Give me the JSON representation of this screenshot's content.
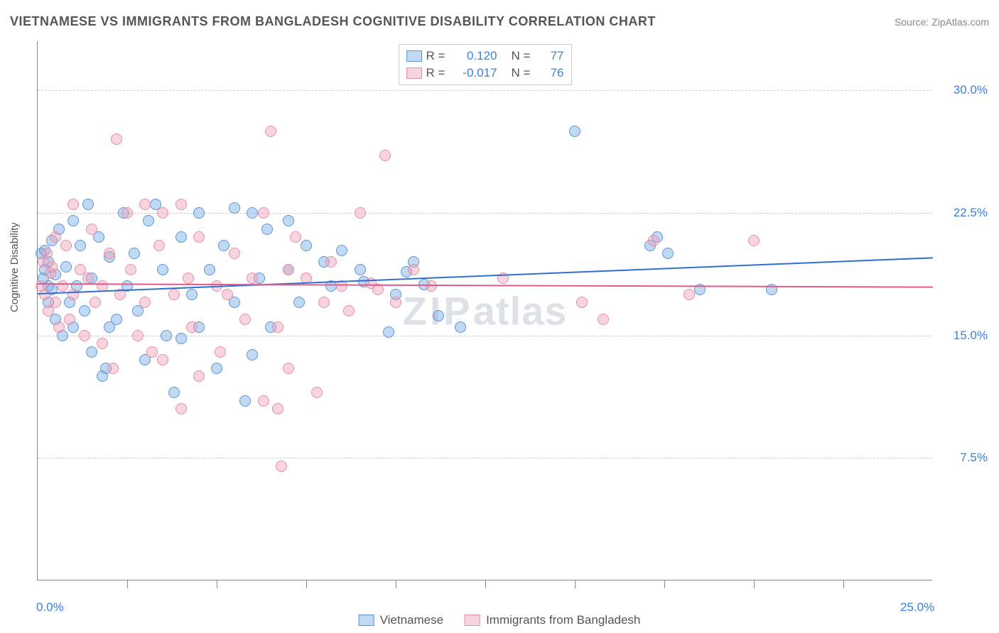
{
  "title": "VIETNAMESE VS IMMIGRANTS FROM BANGLADESH COGNITIVE DISABILITY CORRELATION CHART",
  "source_label": "Source: ",
  "source_name": "ZipAtlas.com",
  "ylabel": "Cognitive Disability",
  "watermark": "ZIPatlas",
  "chart": {
    "type": "scatter",
    "xlim": [
      0,
      25
    ],
    "ylim": [
      0,
      33
    ],
    "x_ticks": [
      0,
      25
    ],
    "x_tick_labels": [
      "0.0%",
      "25.0%"
    ],
    "x_minor_ticks": [
      2.5,
      5,
      7.5,
      10,
      12.5,
      15,
      17.5,
      20,
      22.5
    ],
    "y_ticks": [
      7.5,
      15.0,
      22.5,
      30.0
    ],
    "y_tick_labels": [
      "7.5%",
      "15.0%",
      "22.5%",
      "30.0%"
    ],
    "grid_color": "#cccccc",
    "axis_color": "#888888",
    "background_color": "#ffffff",
    "x_label_color": "#3b82d6",
    "y_label_color": "#3b82d6",
    "marker_radius": 8,
    "series": [
      {
        "name": "Vietnamese",
        "fill": "rgba(120,170,230,0.45)",
        "stroke": "#5a96d6",
        "trend_color": "#2f6fd0",
        "trend": {
          "y_at_xmin": 17.6,
          "y_at_xmax": 19.8
        },
        "R": "0.120",
        "N": "77",
        "points": [
          [
            0.1,
            20.0
          ],
          [
            0.15,
            18.5
          ],
          [
            0.2,
            19.0
          ],
          [
            0.2,
            20.2
          ],
          [
            0.3,
            17.0
          ],
          [
            0.3,
            18.0
          ],
          [
            0.3,
            19.5
          ],
          [
            0.4,
            17.8
          ],
          [
            0.4,
            20.8
          ],
          [
            0.5,
            16.0
          ],
          [
            0.5,
            18.7
          ],
          [
            0.6,
            21.5
          ],
          [
            0.7,
            15.0
          ],
          [
            0.8,
            19.2
          ],
          [
            0.9,
            17.0
          ],
          [
            1.0,
            22.0
          ],
          [
            1.0,
            15.5
          ],
          [
            1.1,
            18.0
          ],
          [
            1.2,
            20.5
          ],
          [
            1.3,
            16.5
          ],
          [
            1.4,
            23.0
          ],
          [
            1.5,
            14.0
          ],
          [
            1.5,
            18.5
          ],
          [
            1.7,
            21.0
          ],
          [
            1.8,
            12.5
          ],
          [
            1.9,
            13.0
          ],
          [
            2.0,
            15.5
          ],
          [
            2.0,
            19.8
          ],
          [
            2.2,
            16.0
          ],
          [
            2.4,
            22.5
          ],
          [
            2.5,
            18.0
          ],
          [
            2.7,
            20.0
          ],
          [
            2.8,
            16.5
          ],
          [
            3.0,
            13.5
          ],
          [
            3.1,
            22.0
          ],
          [
            3.3,
            23.0
          ],
          [
            3.5,
            19.0
          ],
          [
            3.6,
            15.0
          ],
          [
            3.8,
            11.5
          ],
          [
            4.0,
            14.8
          ],
          [
            4.0,
            21.0
          ],
          [
            4.3,
            17.5
          ],
          [
            4.5,
            22.5
          ],
          [
            4.5,
            15.5
          ],
          [
            4.8,
            19.0
          ],
          [
            5.0,
            13.0
          ],
          [
            5.2,
            20.5
          ],
          [
            5.5,
            17.0
          ],
          [
            5.5,
            22.8
          ],
          [
            5.8,
            11.0
          ],
          [
            6.0,
            13.8
          ],
          [
            6.0,
            22.5
          ],
          [
            6.2,
            18.5
          ],
          [
            6.4,
            21.5
          ],
          [
            6.5,
            15.5
          ],
          [
            7.0,
            19.0
          ],
          [
            7.0,
            22.0
          ],
          [
            7.3,
            17.0
          ],
          [
            7.5,
            20.5
          ],
          [
            8.0,
            19.5
          ],
          [
            8.2,
            18.0
          ],
          [
            8.5,
            20.2
          ],
          [
            9.0,
            19.0
          ],
          [
            9.1,
            18.3
          ],
          [
            9.8,
            15.2
          ],
          [
            10.0,
            17.5
          ],
          [
            10.3,
            18.9
          ],
          [
            10.5,
            19.5
          ],
          [
            10.8,
            18.1
          ],
          [
            11.2,
            16.2
          ],
          [
            11.8,
            15.5
          ],
          [
            15.0,
            27.5
          ],
          [
            17.1,
            20.5
          ],
          [
            17.3,
            21.0
          ],
          [
            17.6,
            20.0
          ],
          [
            18.5,
            17.8
          ],
          [
            20.5,
            17.8
          ]
        ]
      },
      {
        "name": "Immigrants from Bangladesh",
        "fill": "rgba(240,160,185,0.45)",
        "stroke": "#e88fa8",
        "trend_color": "#e05a8a",
        "trend": {
          "y_at_xmin": 18.2,
          "y_at_xmax": 18.0
        },
        "R": "-0.017",
        "N": "76",
        "points": [
          [
            0.1,
            18.0
          ],
          [
            0.15,
            19.5
          ],
          [
            0.2,
            17.5
          ],
          [
            0.25,
            20.0
          ],
          [
            0.3,
            16.5
          ],
          [
            0.35,
            18.8
          ],
          [
            0.4,
            19.2
          ],
          [
            0.5,
            17.0
          ],
          [
            0.5,
            21.0
          ],
          [
            0.6,
            15.5
          ],
          [
            0.7,
            18.0
          ],
          [
            0.8,
            20.5
          ],
          [
            0.9,
            16.0
          ],
          [
            1.0,
            17.5
          ],
          [
            1.0,
            23.0
          ],
          [
            1.2,
            19.0
          ],
          [
            1.3,
            15.0
          ],
          [
            1.4,
            18.5
          ],
          [
            1.5,
            21.5
          ],
          [
            1.6,
            17.0
          ],
          [
            1.8,
            14.5
          ],
          [
            1.8,
            18.0
          ],
          [
            2.0,
            20.0
          ],
          [
            2.1,
            13.0
          ],
          [
            2.2,
            27.0
          ],
          [
            2.3,
            17.5
          ],
          [
            2.5,
            22.5
          ],
          [
            2.6,
            19.0
          ],
          [
            2.8,
            15.0
          ],
          [
            3.0,
            17.0
          ],
          [
            3.0,
            23.0
          ],
          [
            3.2,
            14.0
          ],
          [
            3.4,
            20.5
          ],
          [
            3.5,
            22.5
          ],
          [
            3.5,
            13.5
          ],
          [
            3.8,
            17.5
          ],
          [
            4.0,
            10.5
          ],
          [
            4.0,
            23.0
          ],
          [
            4.2,
            18.5
          ],
          [
            4.3,
            15.5
          ],
          [
            4.5,
            12.5
          ],
          [
            4.5,
            21.0
          ],
          [
            5.0,
            18.0
          ],
          [
            5.1,
            14.0
          ],
          [
            5.3,
            17.5
          ],
          [
            5.5,
            20.0
          ],
          [
            5.8,
            16.0
          ],
          [
            6.0,
            18.5
          ],
          [
            6.3,
            22.5
          ],
          [
            6.3,
            11.0
          ],
          [
            6.5,
            27.5
          ],
          [
            6.7,
            15.5
          ],
          [
            6.7,
            10.5
          ],
          [
            6.8,
            7.0
          ],
          [
            7.0,
            13.0
          ],
          [
            7.0,
            19.0
          ],
          [
            7.2,
            21.0
          ],
          [
            7.5,
            18.5
          ],
          [
            7.8,
            11.5
          ],
          [
            8.0,
            17.0
          ],
          [
            8.2,
            19.5
          ],
          [
            8.5,
            18.0
          ],
          [
            8.7,
            16.5
          ],
          [
            9.0,
            22.5
          ],
          [
            9.3,
            18.2
          ],
          [
            9.5,
            17.8
          ],
          [
            9.7,
            26.0
          ],
          [
            10.0,
            17.0
          ],
          [
            10.5,
            19.0
          ],
          [
            11.0,
            18.0
          ],
          [
            13.0,
            18.5
          ],
          [
            15.2,
            17.0
          ],
          [
            15.8,
            16.0
          ],
          [
            17.2,
            20.8
          ],
          [
            18.2,
            17.5
          ],
          [
            20.0,
            20.8
          ]
        ]
      }
    ]
  },
  "legend_top": {
    "r_label": "R =",
    "n_label": "N ="
  },
  "legend_bottom_labels": [
    "Vietnamese",
    "Immigrants from Bangladesh"
  ]
}
